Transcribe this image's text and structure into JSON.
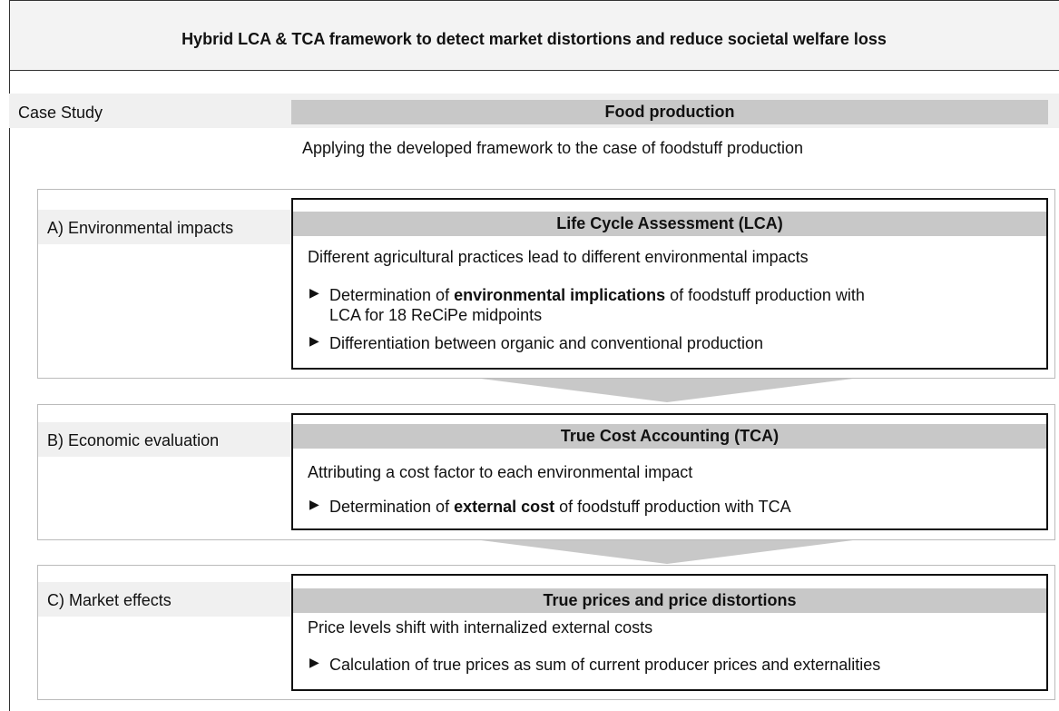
{
  "header": {
    "title": "Hybrid LCA & TCA framework to detect market distortions and reduce societal welfare loss"
  },
  "case_study": {
    "label": "Case Study",
    "heading": "Food production",
    "description": "Applying the developed framework to the case of foodstuff production"
  },
  "sections": [
    {
      "label": "A) Environmental impacts",
      "heading": "Life Cycle Assessment (LCA)",
      "description": "Different agricultural practices lead to different environmental impacts",
      "bullets": [
        [
          [
            {
              "text": "Determination of "
            },
            {
              "text": "environmental implications",
              "bold": true
            },
            {
              "text": " of foodstuff production with"
            }
          ],
          [
            {
              "text": "LCA for 18 ReCiPe midpoints"
            }
          ]
        ],
        [
          [
            {
              "text": "Differentiation between organic and conventional production"
            }
          ]
        ]
      ]
    },
    {
      "label": "B) Economic evaluation",
      "heading": "True Cost Accounting (TCA)",
      "description": "Attributing a cost factor to each environmental impact",
      "bullets": [
        [
          [
            {
              "text": "Determination of "
            },
            {
              "text": "external cost",
              "bold": true
            },
            {
              "text": " of foodstuff production with TCA"
            }
          ]
        ]
      ]
    },
    {
      "label": "C) Market effects",
      "heading": "True prices and price distortions",
      "description": "Price levels shift with internalized external costs",
      "bullets": [
        [
          [
            {
              "text": "Calculation of true prices as sum of current producer prices and externalities"
            }
          ]
        ]
      ]
    }
  ]
}
